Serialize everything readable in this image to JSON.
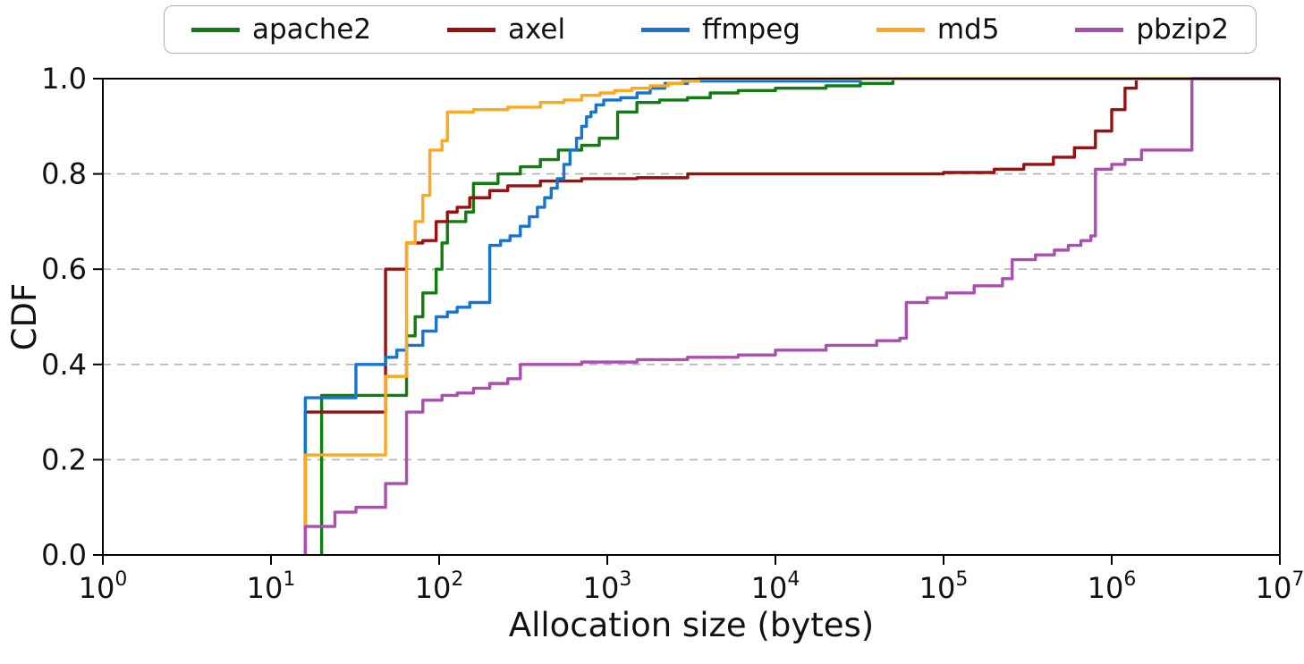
{
  "chart_data": {
    "type": "line",
    "subtype": "cdf-step",
    "title": "",
    "xlabel": "Allocation size (bytes)",
    "ylabel": "CDF",
    "x_scale": "log",
    "xlim": [
      1,
      10000000
    ],
    "ylim": [
      0.0,
      1.0
    ],
    "x_tick_exponents": [
      0,
      1,
      2,
      3,
      4,
      5,
      6,
      7
    ],
    "x_tick_labels": [
      "10^0",
      "10^1",
      "10^2",
      "10^3",
      "10^4",
      "10^5",
      "10^6",
      "10^7"
    ],
    "y_ticks": [
      0.0,
      0.2,
      0.4,
      0.6,
      0.8,
      1.0
    ],
    "grid": "horizontal-dashed",
    "grid_y_values": [
      0.2,
      0.4,
      0.6,
      0.8
    ],
    "grid_color": "#b3b3b3",
    "legend_position": "top",
    "series": [
      {
        "name": "apache2",
        "color": "#0f7d0f",
        "points": [
          [
            20,
            0
          ],
          [
            20,
            0.335
          ],
          [
            64,
            0.46
          ],
          [
            72,
            0.5
          ],
          [
            80,
            0.55
          ],
          [
            96,
            0.6
          ],
          [
            104,
            0.655
          ],
          [
            112,
            0.7
          ],
          [
            144,
            0.72
          ],
          [
            160,
            0.78
          ],
          [
            224,
            0.8
          ],
          [
            304,
            0.815
          ],
          [
            400,
            0.83
          ],
          [
            512,
            0.85
          ],
          [
            704,
            0.86
          ],
          [
            896,
            0.875
          ],
          [
            1152,
            0.93
          ],
          [
            1500,
            0.95
          ],
          [
            2048,
            0.955
          ],
          [
            3000,
            0.96
          ],
          [
            4096,
            0.97
          ],
          [
            6000,
            0.975
          ],
          [
            10000,
            0.98
          ],
          [
            20000,
            0.985
          ],
          [
            32000,
            0.99
          ],
          [
            50000,
            1.0
          ],
          [
            10000000,
            1.0
          ]
        ]
      },
      {
        "name": "axel",
        "color": "#991111",
        "points": [
          [
            16,
            0
          ],
          [
            16,
            0.3
          ],
          [
            48,
            0.6
          ],
          [
            64,
            0.655
          ],
          [
            80,
            0.66
          ],
          [
            96,
            0.7
          ],
          [
            112,
            0.72
          ],
          [
            128,
            0.73
          ],
          [
            152,
            0.75
          ],
          [
            200,
            0.765
          ],
          [
            256,
            0.775
          ],
          [
            400,
            0.785
          ],
          [
            704,
            0.79
          ],
          [
            1504,
            0.792
          ],
          [
            3008,
            0.8
          ],
          [
            30000,
            0.8
          ],
          [
            100000,
            0.803
          ],
          [
            200000,
            0.81
          ],
          [
            300000,
            0.82
          ],
          [
            450000,
            0.835
          ],
          [
            600000,
            0.855
          ],
          [
            800000,
            0.89
          ],
          [
            1000000,
            0.935
          ],
          [
            1200000,
            0.98
          ],
          [
            1400000,
            1.0
          ],
          [
            10000000,
            1.0
          ]
        ]
      },
      {
        "name": "ffmpeg",
        "color": "#1675d1",
        "points": [
          [
            16,
            0
          ],
          [
            16,
            0.33
          ],
          [
            32,
            0.4
          ],
          [
            48,
            0.415
          ],
          [
            56,
            0.43
          ],
          [
            64,
            0.44
          ],
          [
            80,
            0.47
          ],
          [
            96,
            0.5
          ],
          [
            112,
            0.51
          ],
          [
            128,
            0.52
          ],
          [
            152,
            0.53
          ],
          [
            200,
            0.65
          ],
          [
            232,
            0.66
          ],
          [
            264,
            0.67
          ],
          [
            304,
            0.69
          ],
          [
            344,
            0.71
          ],
          [
            384,
            0.73
          ],
          [
            424,
            0.75
          ],
          [
            464,
            0.77
          ],
          [
            504,
            0.79
          ],
          [
            552,
            0.82
          ],
          [
            600,
            0.85
          ],
          [
            656,
            0.875
          ],
          [
            704,
            0.9
          ],
          [
            752,
            0.92
          ],
          [
            800,
            0.93
          ],
          [
            856,
            0.945
          ],
          [
            952,
            0.955
          ],
          [
            1200,
            0.96
          ],
          [
            1504,
            0.97
          ],
          [
            1800,
            0.98
          ],
          [
            2200,
            0.99
          ],
          [
            3000,
            0.995
          ],
          [
            20000,
            0.995
          ],
          [
            32000,
            1.0
          ],
          [
            10000000,
            1.0
          ]
        ]
      },
      {
        "name": "md5",
        "color": "#ffa81c",
        "points": [
          [
            16,
            0
          ],
          [
            16,
            0.21
          ],
          [
            48,
            0.375
          ],
          [
            64,
            0.655
          ],
          [
            72,
            0.7
          ],
          [
            80,
            0.755
          ],
          [
            88,
            0.85
          ],
          [
            104,
            0.87
          ],
          [
            112,
            0.93
          ],
          [
            160,
            0.935
          ],
          [
            256,
            0.94
          ],
          [
            400,
            0.95
          ],
          [
            552,
            0.955
          ],
          [
            704,
            0.965
          ],
          [
            904,
            0.97
          ],
          [
            1104,
            0.975
          ],
          [
            1400,
            0.98
          ],
          [
            1800,
            0.985
          ],
          [
            2304,
            0.99
          ],
          [
            2800,
            0.995
          ],
          [
            3504,
            1.0
          ],
          [
            10000000,
            1.0
          ]
        ]
      },
      {
        "name": "pbzip2",
        "color": "#ab4fae",
        "points": [
          [
            16,
            0
          ],
          [
            16,
            0.06
          ],
          [
            24,
            0.09
          ],
          [
            32,
            0.1
          ],
          [
            48,
            0.15
          ],
          [
            64,
            0.3
          ],
          [
            80,
            0.325
          ],
          [
            104,
            0.335
          ],
          [
            128,
            0.34
          ],
          [
            160,
            0.35
          ],
          [
            200,
            0.36
          ],
          [
            256,
            0.37
          ],
          [
            304,
            0.4
          ],
          [
            704,
            0.405
          ],
          [
            1504,
            0.41
          ],
          [
            3000,
            0.415
          ],
          [
            6000,
            0.42
          ],
          [
            10000,
            0.43
          ],
          [
            20000,
            0.44
          ],
          [
            40000,
            0.45
          ],
          [
            55000,
            0.455
          ],
          [
            60000,
            0.53
          ],
          [
            80000,
            0.54
          ],
          [
            104000,
            0.55
          ],
          [
            152000,
            0.565
          ],
          [
            224000,
            0.58
          ],
          [
            256000,
            0.62
          ],
          [
            352000,
            0.63
          ],
          [
            456000,
            0.64
          ],
          [
            552000,
            0.65
          ],
          [
            656000,
            0.66
          ],
          [
            752000,
            0.67
          ],
          [
            800000,
            0.81
          ],
          [
            1000000,
            0.82
          ],
          [
            1200000,
            0.83
          ],
          [
            1504000,
            0.85
          ],
          [
            3000000,
            1.0
          ],
          [
            10000000,
            1.0
          ]
        ]
      }
    ]
  }
}
